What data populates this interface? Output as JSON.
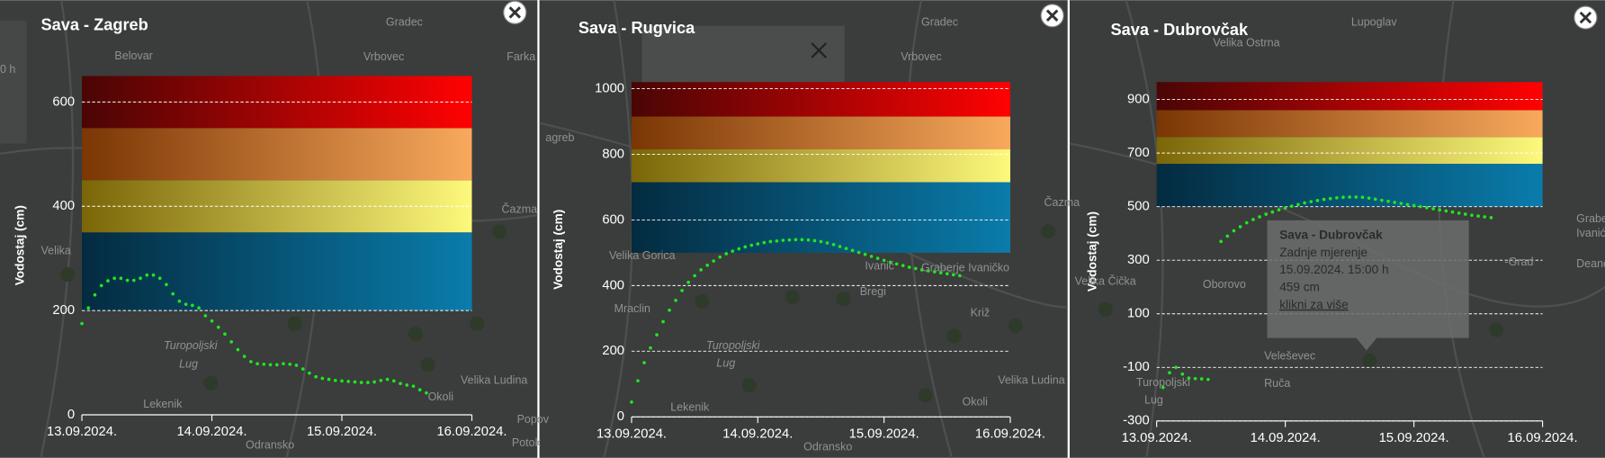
{
  "chart_data": [
    {
      "type": "line",
      "title": "Sava - Zagreb",
      "y_label": "Vodostaj (cm)",
      "xlim": [
        0,
        3
      ],
      "xticks": [
        {
          "value": 0,
          "label": "13.09.2024."
        },
        {
          "value": 1,
          "label": "14.09.2024."
        },
        {
          "value": 2,
          "label": "15.09.2024."
        },
        {
          "value": 3,
          "label": "16.09.2024."
        }
      ],
      "ylim": [
        0,
        650
      ],
      "yticks": [
        0,
        200,
        400,
        600
      ],
      "grid": true,
      "bands": [
        {
          "from": 200,
          "to": 350,
          "colors": [
            "#042b40",
            "#0a7cab"
          ]
        },
        {
          "from": 350,
          "to": 450,
          "colors": [
            "#7a6608",
            "#fdf97c"
          ]
        },
        {
          "from": 450,
          "to": 550,
          "colors": [
            "#7a3604",
            "#f8a95c"
          ]
        },
        {
          "from": 550,
          "to": 650,
          "colors": [
            "#4a0505",
            "#ff0202"
          ]
        }
      ],
      "series": [
        {
          "color": "#1fe81f",
          "x": [
            0,
            0.05,
            0.1,
            0.15,
            0.2,
            0.25,
            0.3,
            0.35,
            0.4,
            0.45,
            0.5,
            0.55,
            0.6,
            0.65,
            0.7,
            0.75,
            0.8,
            0.85,
            0.9,
            0.95,
            1,
            1.05,
            1.1,
            1.15,
            1.2,
            1.25,
            1.3,
            1.35,
            1.4,
            1.45,
            1.5,
            1.55,
            1.6,
            1.65,
            1.7,
            1.75,
            1.8,
            1.85,
            1.9,
            1.95,
            2,
            2.05,
            2.1,
            2.15,
            2.2,
            2.25,
            2.3,
            2.35,
            2.4,
            2.45,
            2.5,
            2.55,
            2.6,
            2.65
          ],
          "values": [
            175,
            205,
            230,
            248,
            257,
            262,
            262,
            258,
            258,
            262,
            268,
            268,
            262,
            250,
            232,
            218,
            212,
            210,
            205,
            190,
            180,
            168,
            155,
            140,
            125,
            112,
            102,
            98,
            97,
            96,
            96,
            98,
            97,
            95,
            88,
            80,
            73,
            70,
            68,
            66,
            65,
            64,
            63,
            62,
            62,
            63,
            66,
            68,
            65,
            60,
            57,
            55,
            48,
            42
          ]
        }
      ]
    },
    {
      "type": "line",
      "title": "Sava - Rugvica",
      "y_label": "Vodostaj (cm)",
      "xlim": [
        0,
        3
      ],
      "xticks": [
        {
          "value": 0,
          "label": "13.09.2024."
        },
        {
          "value": 1,
          "label": "14.09.2024."
        },
        {
          "value": 2,
          "label": "15.09.2024."
        },
        {
          "value": 3,
          "label": "16.09.2024."
        }
      ],
      "ylim": [
        0,
        1020
      ],
      "yticks": [
        0,
        200,
        400,
        600,
        800,
        1000
      ],
      "grid": true,
      "bands": [
        {
          "from": 500,
          "to": 715,
          "colors": [
            "#042b40",
            "#0a7cab"
          ]
        },
        {
          "from": 715,
          "to": 815,
          "colors": [
            "#7a6608",
            "#fdf97c"
          ]
        },
        {
          "from": 815,
          "to": 915,
          "colors": [
            "#7a3604",
            "#f8a95c"
          ]
        },
        {
          "from": 915,
          "to": 1020,
          "colors": [
            "#4a0505",
            "#ff0202"
          ]
        }
      ],
      "series": [
        {
          "color": "#1fe81f",
          "x": [
            0,
            0.05,
            0.1,
            0.15,
            0.2,
            0.25,
            0.3,
            0.35,
            0.4,
            0.45,
            0.5,
            0.55,
            0.6,
            0.65,
            0.7,
            0.75,
            0.8,
            0.85,
            0.9,
            0.95,
            1,
            1.05,
            1.1,
            1.15,
            1.2,
            1.25,
            1.3,
            1.35,
            1.4,
            1.45,
            1.5,
            1.55,
            1.6,
            1.65,
            1.7,
            1.75,
            1.8,
            1.85,
            1.9,
            1.95,
            2,
            2.05,
            2.1,
            2.15,
            2.2,
            2.25,
            2.3,
            2.35,
            2.4,
            2.45,
            2.5,
            2.55,
            2.6
          ],
          "values": [
            45,
            110,
            165,
            210,
            250,
            290,
            325,
            355,
            385,
            410,
            430,
            448,
            462,
            475,
            487,
            497,
            505,
            512,
            518,
            523,
            527,
            531,
            534,
            536,
            538,
            539,
            540,
            540,
            539,
            537,
            534,
            530,
            525,
            519,
            513,
            507,
            501,
            495,
            489,
            483,
            477,
            471,
            466,
            461,
            456,
            452,
            448,
            445,
            442,
            439,
            436,
            433,
            430
          ]
        }
      ]
    },
    {
      "type": "line",
      "title": "Sava - Dubrovčak",
      "y_label": "Vodostaj (cm)",
      "xlim": [
        0,
        3
      ],
      "xticks": [
        {
          "value": 0,
          "label": "13.09.2024."
        },
        {
          "value": 1,
          "label": "14.09.2024."
        },
        {
          "value": 2,
          "label": "15.09.2024."
        },
        {
          "value": 3,
          "label": "16.09.2024."
        }
      ],
      "ylim": [
        -300,
        965
      ],
      "yticks": [
        -300,
        -100,
        100,
        300,
        500,
        700,
        900
      ],
      "grid": true,
      "bands": [
        {
          "from": 500,
          "to": 660,
          "colors": [
            "#042b40",
            "#0a7cab"
          ]
        },
        {
          "from": 660,
          "to": 760,
          "colors": [
            "#7a6608",
            "#fdf97c"
          ]
        },
        {
          "from": 760,
          "to": 860,
          "colors": [
            "#7a3604",
            "#f8a95c"
          ]
        },
        {
          "from": 860,
          "to": 965,
          "colors": [
            "#4a0505",
            "#ff0202"
          ]
        }
      ],
      "series": [
        {
          "color": "#1fe81f",
          "x": [
            0.05,
            0.1,
            0.15,
            0.2,
            0.25,
            0.3,
            0.35,
            0.4,
            0.45,
            0.5,
            0.55,
            0.6,
            0.65,
            0.7,
            0.75,
            0.8,
            0.85,
            0.9,
            0.95,
            1,
            1.05,
            1.1,
            1.15,
            1.2,
            1.25,
            1.3,
            1.35,
            1.4,
            1.45,
            1.5,
            1.55,
            1.6,
            1.65,
            1.7,
            1.75,
            1.8,
            1.85,
            1.9,
            1.95,
            2,
            2.05,
            2.1,
            2.15,
            2.2,
            2.25,
            2.3,
            2.35,
            2.4,
            2.45,
            2.5,
            2.55,
            2.6
          ],
          "values": [
            -175,
            -120,
            -100,
            -125,
            -140,
            -142,
            -143,
            -145,
            null,
            370,
            390,
            410,
            425,
            440,
            452,
            462,
            472,
            480,
            488,
            495,
            502,
            508,
            514,
            519,
            523,
            527,
            530,
            533,
            535,
            536,
            536,
            535,
            532,
            528,
            524,
            520,
            516,
            512,
            508,
            504,
            500,
            496,
            492,
            488,
            484,
            480,
            476,
            472,
            468,
            465,
            462,
            459
          ]
        }
      ]
    }
  ],
  "map_labels": [
    [
      "Gradec",
      "Vrbovec",
      "Belovar",
      "Farka",
      "Velika",
      "Turopoljski",
      "Lug",
      "Lekenik",
      "Odransko",
      "Velika Ludina",
      "Popov",
      "Okoli",
      "Čazma",
      "Potok",
      "0 h"
    ],
    [
      "Gradec",
      "Vrbovec",
      "agreb",
      "Velika Gorica",
      "Mraclin",
      "Turopoljski",
      "Lug",
      "Lekenik",
      "Odransko",
      "Ivanić",
      "Bregi",
      "Križ",
      "Velika Ludina",
      "Okoli",
      "Čazma",
      "Graberje Ivaničko"
    ],
    [
      "Lupoglav",
      "Velika Ostrna",
      "Oborovo",
      "Velika Čička",
      "Veleševec",
      "Ruča",
      "Turopoljski",
      "Lug",
      "Graber",
      "Ivanić",
      "Deanov",
      "-Grad"
    ]
  ],
  "tooltip": {
    "title": "Sava - Dubrovčak",
    "subtitle": "Zadnje mjerenje",
    "time": "15.09.2024. 15:00 h",
    "value": "459 cm",
    "link": "klikni za više"
  }
}
